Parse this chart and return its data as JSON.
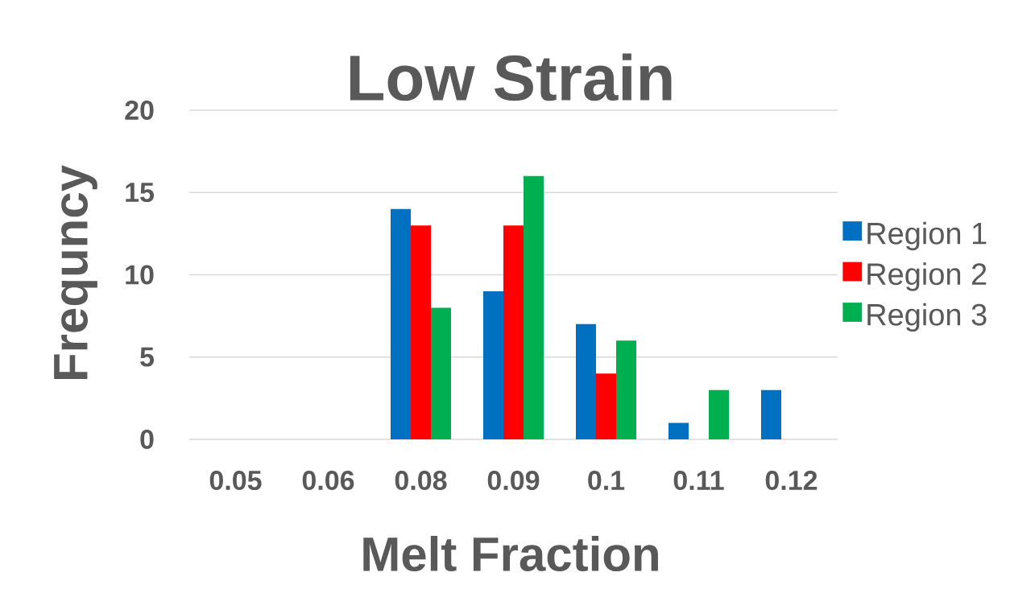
{
  "chart_data": {
    "type": "bar",
    "title": "Low Strain",
    "xlabel": "Melt Fraction",
    "ylabel": "Frequncy",
    "categories": [
      "0.05",
      "0.06",
      "0.08",
      "0.09",
      "0.1",
      "0.11",
      "0.12"
    ],
    "series": [
      {
        "name": "Region 1",
        "color": "#0070c0",
        "values": [
          0,
          0,
          14,
          9,
          7,
          1,
          3
        ]
      },
      {
        "name": "Region 2",
        "color": "#ff0000",
        "values": [
          0,
          0,
          13,
          13,
          4,
          0,
          0
        ]
      },
      {
        "name": "Region 3",
        "color": "#00b050",
        "values": [
          0,
          0,
          8,
          16,
          6,
          3,
          0
        ]
      }
    ],
    "ylim": [
      0,
      20
    ],
    "yticks": [
      0,
      5,
      10,
      15,
      20
    ],
    "grid": "y",
    "legend": "right"
  }
}
